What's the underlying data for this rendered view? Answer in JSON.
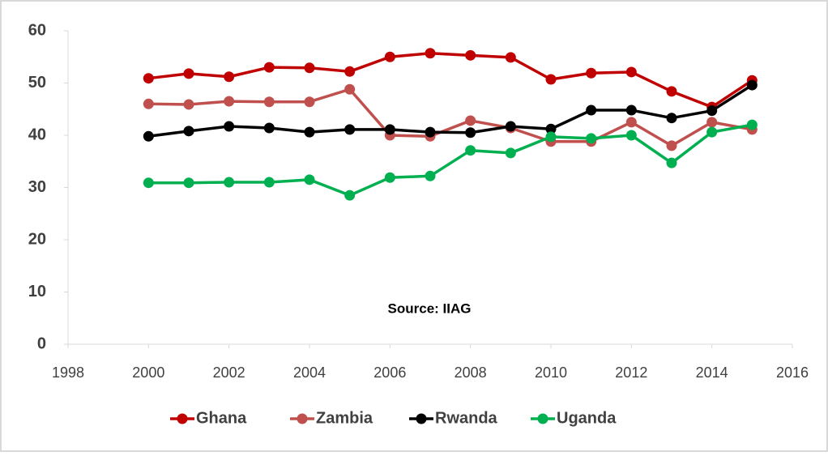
{
  "chart_data": {
    "type": "line",
    "annotation": "Source: IIAG",
    "x": [
      2000,
      2001,
      2002,
      2003,
      2004,
      2005,
      2006,
      2007,
      2008,
      2009,
      2010,
      2011,
      2012,
      2013,
      2014,
      2015
    ],
    "series": [
      {
        "name": "Ghana",
        "color": "#c00000",
        "values": [
          50.9,
          51.8,
          51.2,
          53.0,
          52.9,
          52.2,
          55.0,
          55.7,
          55.3,
          54.9,
          50.7,
          51.9,
          52.1,
          48.4,
          45.4,
          50.5
        ]
      },
      {
        "name": "Zambia",
        "color": "#c0504d",
        "values": [
          46.0,
          45.9,
          46.5,
          46.4,
          46.4,
          48.8,
          40.0,
          39.8,
          42.8,
          41.4,
          38.8,
          38.8,
          42.5,
          38.0,
          42.5,
          41.1
        ]
      },
      {
        "name": "Rwanda",
        "color": "#000000",
        "values": [
          39.8,
          40.8,
          41.7,
          41.4,
          40.6,
          41.1,
          41.1,
          40.6,
          40.5,
          41.7,
          41.2,
          44.8,
          44.8,
          43.3,
          44.7,
          49.6
        ]
      },
      {
        "name": "Uganda",
        "color": "#00b050",
        "values": [
          30.9,
          30.9,
          31.0,
          31.0,
          31.5,
          28.5,
          31.9,
          32.2,
          37.1,
          36.6,
          39.7,
          39.4,
          40.0,
          34.7,
          40.6,
          42.0
        ]
      }
    ],
    "xlim": [
      1998,
      2016
    ],
    "xticks": [
      1998,
      2000,
      2002,
      2004,
      2006,
      2008,
      2010,
      2012,
      2014,
      2016
    ],
    "ylim": [
      0,
      60
    ],
    "yticks": [
      0,
      10,
      20,
      30,
      40,
      50,
      60
    ],
    "grid": false,
    "legend": "bottom"
  }
}
